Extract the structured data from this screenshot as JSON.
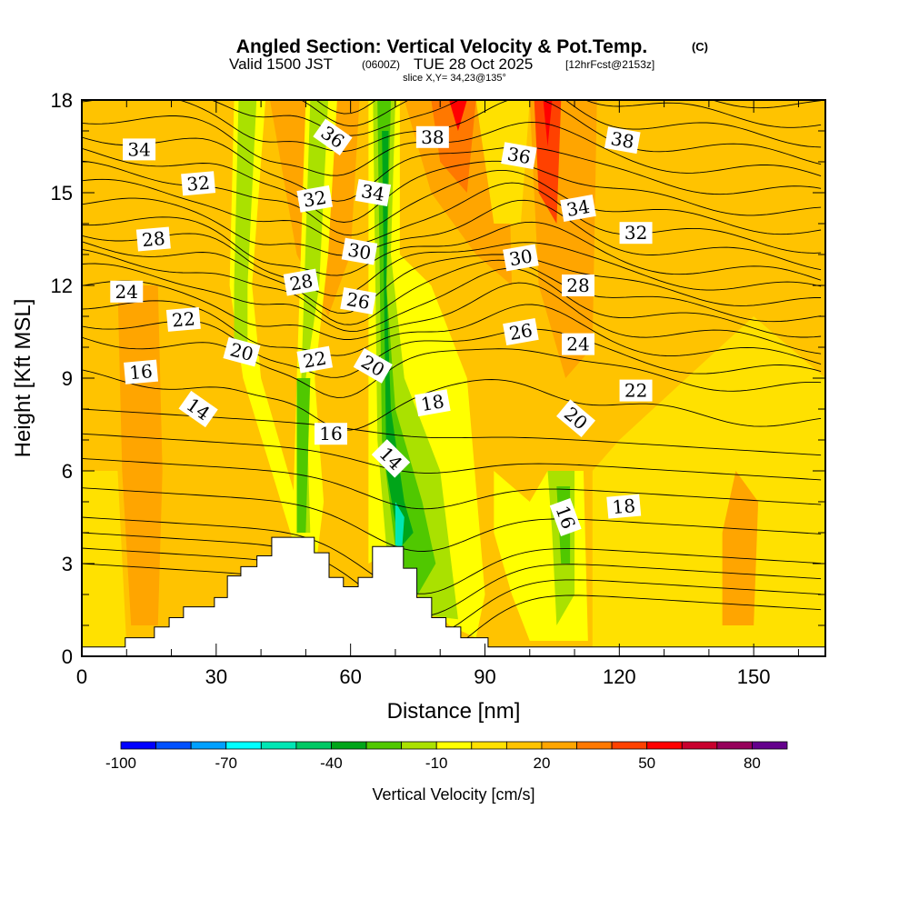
{
  "chart_data": {
    "type": "heatmap",
    "title": "Angled Section: Vertical Velocity & Pot.Temp.",
    "title_mark": "(C)",
    "subtitle_main": "Valid 1500 JST",
    "subtitle_utc": "(0600Z)",
    "subtitle_date": "TUE 28 Oct 2025",
    "subtitle_fcst": "[12hrFcst@2153z]",
    "slice": "slice X,Y= 34,23@135°",
    "xlabel": "Distance [nm]",
    "ylabel": "Height [Kft MSL]",
    "xlim": [
      0,
      166
    ],
    "ylim": [
      0,
      18
    ],
    "xticks": [
      "0",
      "30",
      "60",
      "90",
      "120",
      "150"
    ],
    "xtick_values": [
      0,
      30,
      60,
      90,
      120,
      150
    ],
    "yticks": [
      "0",
      "3",
      "6",
      "9",
      "12",
      "15",
      "18"
    ],
    "ytick_values": [
      0,
      3,
      6,
      9,
      12,
      15,
      18
    ],
    "colorbar": {
      "label": "Vertical Velocity [cm/s]",
      "min": -100,
      "max": 90,
      "step": 10,
      "tick_labels": [
        "-100",
        "-70",
        "-40",
        "-10",
        "20",
        "50",
        "80"
      ],
      "tick_values": [
        -100,
        -70,
        -40,
        -10,
        20,
        50,
        80
      ],
      "colors": [
        "#0000ff",
        "#0050ff",
        "#00a0ff",
        "#00ffff",
        "#00e6b4",
        "#00c864",
        "#00a519",
        "#50c800",
        "#aae100",
        "#ffff00",
        "#ffe100",
        "#ffc300",
        "#ffa500",
        "#ff7800",
        "#ff4100",
        "#ff0000",
        "#c8002d",
        "#96005a",
        "#64008c"
      ]
    },
    "background_velocity": 10,
    "velocity_regions": [
      {
        "value": 0,
        "points": [
          [
            114,
            0
          ],
          [
            166,
            0
          ],
          [
            166,
            9
          ],
          [
            150,
            11
          ],
          [
            135,
            9
          ],
          [
            120,
            7
          ],
          [
            114,
            6
          ]
        ]
      },
      {
        "value": 0,
        "points": [
          [
            0,
            6
          ],
          [
            8,
            6
          ],
          [
            10,
            0.3
          ],
          [
            0,
            0.3
          ]
        ]
      },
      {
        "value": 20,
        "points": [
          [
            8,
            12
          ],
          [
            17,
            12
          ],
          [
            18,
            6
          ],
          [
            17,
            1
          ],
          [
            11,
            1
          ],
          [
            9,
            6
          ]
        ]
      },
      {
        "value": 20,
        "points": [
          [
            143,
            1
          ],
          [
            150,
            1
          ],
          [
            151,
            5
          ],
          [
            146,
            6
          ],
          [
            143,
            4
          ]
        ]
      },
      {
        "value": 20,
        "points": [
          [
            42,
            18
          ],
          [
            62,
            18
          ],
          [
            60,
            13
          ],
          [
            55,
            11
          ],
          [
            48,
            13
          ]
        ]
      },
      {
        "value": 20,
        "points": [
          [
            72,
            18
          ],
          [
            95,
            18
          ],
          [
            96,
            12
          ],
          [
            88,
            13
          ],
          [
            78,
            15
          ]
        ]
      },
      {
        "value": 20,
        "points": [
          [
            100,
            18
          ],
          [
            115,
            18
          ],
          [
            114,
            10
          ],
          [
            108,
            9
          ],
          [
            102,
            12
          ]
        ]
      },
      {
        "value": 30,
        "points": [
          [
            78,
            18
          ],
          [
            88,
            18
          ],
          [
            86,
            15
          ],
          [
            80,
            16
          ]
        ]
      },
      {
        "value": 40,
        "points": [
          [
            101,
            18
          ],
          [
            107,
            18
          ],
          [
            106,
            14
          ],
          [
            102,
            15
          ]
        ]
      },
      {
        "value": 50,
        "points": [
          [
            82,
            18
          ],
          [
            86,
            18
          ],
          [
            84,
            17
          ]
        ]
      },
      {
        "value": 50,
        "points": [
          [
            103,
            18
          ],
          [
            105,
            18
          ],
          [
            104,
            16.5
          ]
        ]
      },
      {
        "value": 0,
        "points": [
          [
            88,
            18
          ],
          [
            100,
            18
          ],
          [
            98,
            14
          ],
          [
            92,
            14
          ]
        ]
      },
      {
        "value": -10,
        "points": [
          [
            34,
            18
          ],
          [
            41,
            18
          ],
          [
            38,
            12
          ],
          [
            40,
            9
          ],
          [
            50,
            4
          ],
          [
            47,
            3.8
          ],
          [
            36,
            9
          ],
          [
            33,
            12
          ]
        ]
      },
      {
        "value": -20,
        "points": [
          [
            35,
            18
          ],
          [
            39,
            18
          ],
          [
            37,
            12
          ],
          [
            37,
            10
          ],
          [
            34,
            10
          ],
          [
            34,
            12
          ]
        ]
      },
      {
        "value": -10,
        "points": [
          [
            50,
            18
          ],
          [
            57,
            18
          ],
          [
            55,
            13
          ],
          [
            52,
            9
          ],
          [
            54,
            5
          ],
          [
            52,
            2.6
          ],
          [
            47,
            3.9
          ],
          [
            48,
            9
          ]
        ]
      },
      {
        "value": -20,
        "points": [
          [
            51,
            18
          ],
          [
            55,
            18
          ],
          [
            53,
            12
          ],
          [
            50,
            9
          ],
          [
            51,
            4
          ],
          [
            48,
            4
          ],
          [
            49,
            9
          ]
        ]
      },
      {
        "value": -30,
        "points": [
          [
            48,
            9
          ],
          [
            51,
            9
          ],
          [
            50,
            4
          ],
          [
            48,
            4
          ]
        ]
      },
      {
        "value": -10,
        "points": [
          [
            64,
            18
          ],
          [
            71,
            18
          ],
          [
            71,
            13
          ],
          [
            78,
            12
          ],
          [
            86,
            9
          ],
          [
            90,
            2
          ],
          [
            88,
            0.6
          ],
          [
            82,
            1
          ],
          [
            76,
            2
          ],
          [
            70,
            3.5
          ],
          [
            64,
            3
          ]
        ]
      },
      {
        "value": -20,
        "points": [
          [
            65,
            18
          ],
          [
            70,
            18
          ],
          [
            69,
            13
          ],
          [
            72,
            9
          ],
          [
            80,
            6
          ],
          [
            84,
            1.2
          ],
          [
            78,
            1.3
          ],
          [
            74,
            2.2
          ],
          [
            68,
            3.5
          ],
          [
            66,
            7
          ]
        ]
      },
      {
        "value": -30,
        "points": [
          [
            66,
            18
          ],
          [
            69,
            18
          ],
          [
            68,
            12
          ],
          [
            70,
            8
          ],
          [
            76,
            5
          ],
          [
            79,
            3
          ],
          [
            75,
            2
          ],
          [
            70,
            3.5
          ],
          [
            67,
            7
          ]
        ]
      },
      {
        "value": -40,
        "points": [
          [
            67,
            17
          ],
          [
            68.5,
            17
          ],
          [
            68,
            12
          ],
          [
            69,
            8
          ],
          [
            72,
            5
          ],
          [
            74,
            4
          ],
          [
            71,
            3.5
          ],
          [
            68,
            6
          ]
        ]
      },
      {
        "value": -60,
        "points": [
          [
            70,
            5
          ],
          [
            72,
            4.5
          ],
          [
            71.5,
            3.5
          ],
          [
            70,
            3.6
          ]
        ]
      },
      {
        "value": -10,
        "points": [
          [
            92,
            6
          ],
          [
            100,
            5
          ],
          [
            104,
            6
          ],
          [
            112,
            6
          ],
          [
            113,
            0.5
          ],
          [
            100,
            0.5
          ],
          [
            96,
            2
          ],
          [
            92,
            4
          ]
        ]
      },
      {
        "value": -20,
        "points": [
          [
            104,
            6
          ],
          [
            110,
            6
          ],
          [
            110,
            2
          ],
          [
            106,
            1
          ],
          [
            105,
            4
          ]
        ]
      },
      {
        "value": -30,
        "points": [
          [
            106,
            5.5
          ],
          [
            109,
            5.5
          ],
          [
            109,
            3
          ],
          [
            107,
            3
          ]
        ]
      }
    ],
    "terrain": [
      [
        0,
        0.3
      ],
      [
        9.7,
        0.3
      ],
      [
        9.7,
        0.6
      ],
      [
        16.2,
        0.6
      ],
      [
        16.2,
        0.95
      ],
      [
        19.5,
        0.95
      ],
      [
        19.5,
        1.25
      ],
      [
        22.7,
        1.25
      ],
      [
        22.7,
        1.6
      ],
      [
        29.6,
        1.6
      ],
      [
        29.6,
        1.9
      ],
      [
        32.5,
        1.9
      ],
      [
        32.5,
        2.6
      ],
      [
        35.5,
        2.6
      ],
      [
        35.5,
        2.9
      ],
      [
        39.1,
        2.9
      ],
      [
        39.1,
        3.25
      ],
      [
        42.4,
        3.25
      ],
      [
        42.4,
        3.85
      ],
      [
        51.9,
        3.85
      ],
      [
        51.9,
        3.35
      ],
      [
        55.2,
        3.35
      ],
      [
        55.2,
        2.55
      ],
      [
        58.4,
        2.55
      ],
      [
        58.4,
        2.25
      ],
      [
        61.7,
        2.25
      ],
      [
        61.7,
        2.55
      ],
      [
        64.9,
        2.55
      ],
      [
        64.9,
        3.55
      ],
      [
        71.8,
        3.55
      ],
      [
        71.8,
        2.85
      ],
      [
        74.8,
        2.85
      ],
      [
        74.8,
        1.9
      ],
      [
        78.1,
        1.9
      ],
      [
        78.1,
        1.25
      ],
      [
        81.3,
        1.25
      ],
      [
        81.3,
        0.95
      ],
      [
        84.6,
        0.95
      ],
      [
        84.6,
        0.6
      ],
      [
        90.7,
        0.6
      ],
      [
        90.7,
        0.3
      ],
      [
        166,
        0.3
      ]
    ],
    "theta_levels": [
      13,
      14,
      15,
      16,
      17,
      18,
      19,
      20,
      21,
      22,
      23,
      24,
      25,
      26,
      27,
      28,
      29,
      30,
      31,
      32,
      33,
      34,
      35,
      36,
      37,
      38,
      39,
      40
    ],
    "theta_labels": [
      {
        "text": "34",
        "d": 12.8,
        "h": 16.4,
        "angle": 0
      },
      {
        "text": "32",
        "d": 26,
        "h": 15.3,
        "angle": -5
      },
      {
        "text": "28",
        "d": 16,
        "h": 13.5,
        "angle": -5
      },
      {
        "text": "24",
        "d": 10,
        "h": 11.8,
        "angle": 0
      },
      {
        "text": "22",
        "d": 22.7,
        "h": 10.9,
        "angle": -5
      },
      {
        "text": "20",
        "d": 35.7,
        "h": 9.85,
        "angle": 15
      },
      {
        "text": "16",
        "d": 13.2,
        "h": 9.2,
        "angle": -5
      },
      {
        "text": "14",
        "d": 26,
        "h": 8.0,
        "angle": 35
      },
      {
        "text": "36",
        "d": 56,
        "h": 16.8,
        "angle": 35
      },
      {
        "text": "32",
        "d": 52,
        "h": 14.8,
        "angle": -10
      },
      {
        "text": "34",
        "d": 65,
        "h": 15.0,
        "angle": 10
      },
      {
        "text": "30",
        "d": 62,
        "h": 13.1,
        "angle": 10
      },
      {
        "text": "28",
        "d": 49,
        "h": 12.1,
        "angle": -10
      },
      {
        "text": "26",
        "d": 61.7,
        "h": 11.5,
        "angle": 10
      },
      {
        "text": "22",
        "d": 52,
        "h": 9.6,
        "angle": -10
      },
      {
        "text": "20",
        "d": 65,
        "h": 9.4,
        "angle": 30
      },
      {
        "text": "16",
        "d": 55.6,
        "h": 7.2,
        "angle": 0
      },
      {
        "text": "14",
        "d": 69,
        "h": 6.4,
        "angle": 45
      },
      {
        "text": "18",
        "d": 78.3,
        "h": 8.2,
        "angle": -10
      },
      {
        "text": "38",
        "d": 78.3,
        "h": 16.8,
        "angle": 0
      },
      {
        "text": "36",
        "d": 97.6,
        "h": 16.2,
        "angle": 10
      },
      {
        "text": "30",
        "d": 98,
        "h": 12.9,
        "angle": -10
      },
      {
        "text": "26",
        "d": 98,
        "h": 10.5,
        "angle": -10
      },
      {
        "text": "34",
        "d": 110.8,
        "h": 14.5,
        "angle": -10
      },
      {
        "text": "28",
        "d": 110.8,
        "h": 12.0,
        "angle": 0
      },
      {
        "text": "24",
        "d": 110.8,
        "h": 10.1,
        "angle": 0
      },
      {
        "text": "20",
        "d": 110.3,
        "h": 7.7,
        "angle": 40
      },
      {
        "text": "16",
        "d": 108,
        "h": 4.5,
        "angle": 70
      },
      {
        "text": "18",
        "d": 121,
        "h": 4.85,
        "angle": -5
      },
      {
        "text": "22",
        "d": 123.7,
        "h": 8.6,
        "angle": 0
      },
      {
        "text": "32",
        "d": 123.7,
        "h": 13.7,
        "angle": 0
      },
      {
        "text": "38",
        "d": 120.7,
        "h": 16.7,
        "angle": 10
      }
    ]
  }
}
